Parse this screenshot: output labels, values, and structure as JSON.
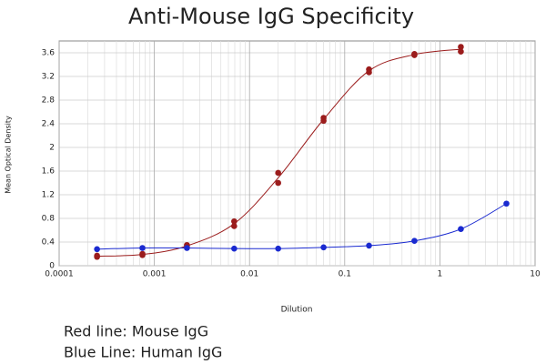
{
  "chart_data": {
    "type": "scatter",
    "title": "Anti-Mouse IgG Specificity",
    "x_label": "Dilution",
    "y_label": "Mean Optical Density",
    "xscale": "log",
    "grid": true,
    "xlim": [
      0.0001,
      10
    ],
    "xticks": [
      0.0001,
      0.001,
      0.01,
      0.1,
      1,
      10
    ],
    "ylim": [
      0,
      3.8
    ],
    "yticks": [
      0,
      0.4,
      0.8,
      1.2,
      1.6,
      2,
      2.4,
      2.8,
      3.2,
      3.6
    ],
    "series": [
      {
        "name": "Red line: Mouse IgG",
        "color": "#9b1c1c",
        "x": [
          0.00025,
          0.00025,
          0.00075,
          0.00075,
          0.0022,
          0.0022,
          0.0069,
          0.0069,
          0.02,
          0.02,
          0.06,
          0.06,
          0.18,
          0.18,
          0.54,
          0.54,
          1.66,
          1.66
        ],
        "values": [
          0.17,
          0.15,
          0.2,
          0.18,
          0.35,
          0.32,
          0.75,
          0.67,
          1.57,
          1.4,
          2.5,
          2.45,
          3.32,
          3.27,
          3.58,
          3.56,
          3.7,
          3.62
        ]
      },
      {
        "name": "Blue Line: Human IgG",
        "color": "#1a2ad0",
        "x": [
          0.00025,
          0.00075,
          0.0022,
          0.0069,
          0.02,
          0.06,
          0.18,
          0.54,
          1.66,
          5
        ],
        "values": [
          0.28,
          0.3,
          0.3,
          0.29,
          0.29,
          0.31,
          0.34,
          0.42,
          0.62,
          1.05
        ]
      }
    ]
  }
}
